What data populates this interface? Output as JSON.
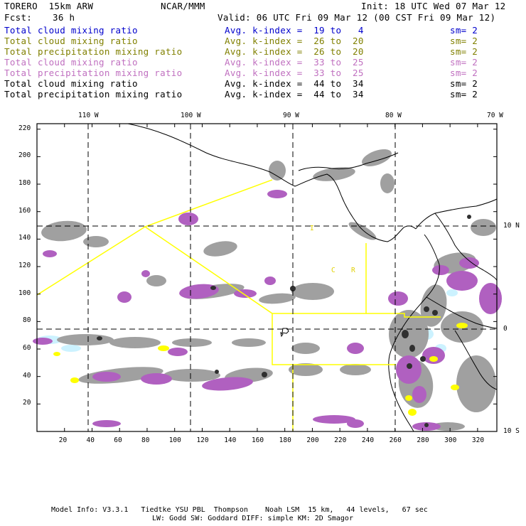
{
  "header": {
    "model": "TORERO  15km ARW",
    "center": "NCAR/MMM",
    "init": "Init: 18 UTC Wed 07 Mar 12",
    "fcst_label": "Fcst:",
    "fcst_value": "36 h",
    "valid": "Valid: 06 UTC Fri 09 Mar 12 (00 CST Fri 09 Mar 12)"
  },
  "legend": [
    {
      "name": "Total cloud mixing ratio",
      "index": "Avg. k-index =  19 to   4",
      "sm": "sm= 2",
      "color": "#0000cc"
    },
    {
      "name": "Total cloud mixing ratio",
      "index": "Avg. k-index =  26 to  20",
      "sm": "sm= 2",
      "color": "#808000"
    },
    {
      "name": "Total precipitation mixing ratio",
      "index": "Avg. k-index =  26 to  20",
      "sm": "sm= 2",
      "color": "#808000"
    },
    {
      "name": "Total cloud mixing ratio",
      "index": "Avg. k-index =  33 to  25",
      "sm": "sm= 2",
      "color": "#c070c0"
    },
    {
      "name": "Total precipitation mixing ratio",
      "index": "Avg. k-index =  33 to  25",
      "sm": "sm= 2",
      "color": "#c070c0"
    },
    {
      "name": "Total cloud mixing ratio",
      "index": "Avg. k-index =  44 to  34",
      "sm": "sm= 2",
      "color": "#000000"
    },
    {
      "name": "Total precipitation mixing ratio",
      "index": "Avg. k-index =  44 to  34",
      "sm": "sm= 2",
      "color": "#000000"
    }
  ],
  "map": {
    "x_ticks": [
      "20",
      "40",
      "60",
      "80",
      "100",
      "120",
      "140",
      "160",
      "180",
      "200",
      "220",
      "240",
      "260",
      "280",
      "300",
      "320"
    ],
    "y_ticks": [
      "220",
      "200",
      "180",
      "160",
      "140",
      "120",
      "100",
      "80",
      "60",
      "40",
      "20"
    ],
    "lon_labels": [
      "110 W",
      "100 W",
      "90 W",
      "80 W",
      "70 W"
    ],
    "lat_labels": [
      "10 N",
      "0",
      "10 S"
    ],
    "region_labels": [
      "I",
      "C",
      "R"
    ]
  },
  "footer": {
    "line1": "Model Info: V3.3.1   Tiedtke YSU PBL  Thompson    Noah LSM  15 km,   44 levels,   67 sec",
    "line2": "LW: Godd SW: Goddard DIFF: simple KM: 2D Smagor"
  },
  "colors": {
    "purple": "#b060c0",
    "gray": "#a0a0a0",
    "yellow": "#ffff00",
    "cyan": "#ccf2ff",
    "domain_line": "#ffff00"
  }
}
